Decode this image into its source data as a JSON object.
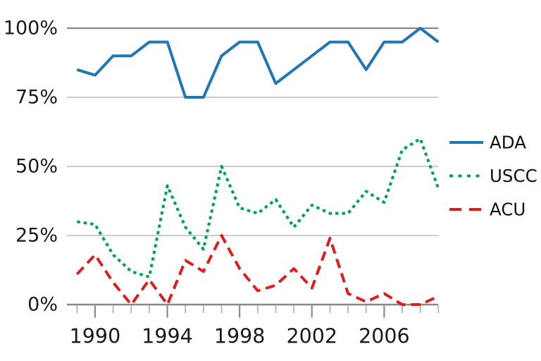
{
  "colors": {
    "background": "#ffffff",
    "grid_minor": "#cbcbcb",
    "grid_major": "#878787",
    "tick_minor": "#b3b3b3",
    "tick_major": "#8a8a8a",
    "label_text": "#1a1a1a",
    "legend_text": "#111111",
    "ada_blue": "#1f77b4",
    "uscc_green": "#00a352",
    "acu_red": "#dd1e1e"
  },
  "chart_data": {
    "type": "line",
    "title": "",
    "xlabel": "",
    "ylabel": "",
    "grid": true,
    "legend_position": "right",
    "ylim": [
      0,
      100
    ],
    "xlim": [
      1989,
      2009
    ],
    "x": [
      1989,
      1990,
      1991,
      1992,
      1993,
      1994,
      1995,
      1996,
      1997,
      1998,
      1999,
      2000,
      2001,
      2002,
      2003,
      2004,
      2005,
      2006,
      2007,
      2008,
      2009
    ],
    "x_tick_labels": [
      "1990",
      "1994",
      "1998",
      "2002",
      "2006"
    ],
    "x_tick_years": [
      1990,
      1994,
      1998,
      2002,
      2006
    ],
    "y_tick_values": [
      0,
      25,
      50,
      75,
      100
    ],
    "y_tick_labels": [
      "0%",
      "25%",
      "50%",
      "75%",
      "100%"
    ],
    "series": [
      {
        "name": "ADA",
        "color": "#1f77b4",
        "line_style": "solid",
        "values": [
          85,
          83,
          90,
          90,
          95,
          95,
          75,
          75,
          90,
          95,
          95,
          80,
          85,
          90,
          95,
          95,
          85,
          95,
          95,
          100,
          95
        ]
      },
      {
        "name": "USCC",
        "color": "#00a352",
        "line_style": "dotted",
        "values": [
          30,
          29,
          18,
          12,
          10,
          43,
          28,
          20,
          50,
          35,
          33,
          38,
          28,
          36,
          33,
          33,
          41,
          37,
          56,
          60,
          42
        ]
      },
      {
        "name": "ACU",
        "color": "#dd1e1e",
        "line_style": "dashed",
        "values": [
          11,
          18,
          8,
          0,
          9,
          0,
          16,
          12,
          25,
          13,
          5,
          7,
          13,
          6,
          24,
          4,
          1,
          4,
          0,
          0,
          3
        ]
      }
    ]
  },
  "legend": {
    "labels": [
      "ADA",
      "USCC",
      "ACU"
    ]
  }
}
